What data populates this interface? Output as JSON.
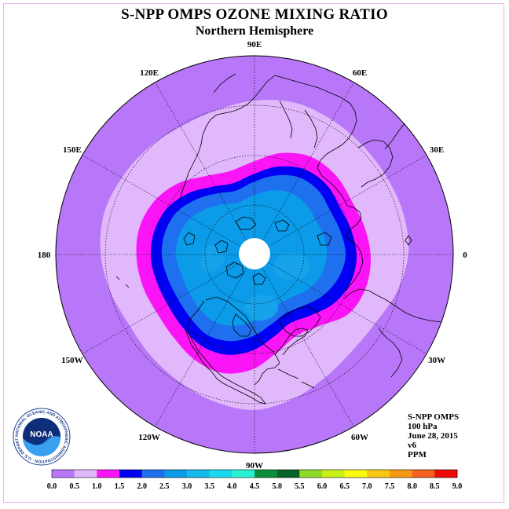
{
  "title": "S-NPP OMPS OZONE MIXING RATIO",
  "subtitle": "Northern Hemisphere",
  "longitude_labels": [
    "90E",
    "60E",
    "30E",
    "0",
    "30W",
    "60W",
    "90W",
    "120W",
    "150W",
    "180",
    "150E",
    "120E"
  ],
  "info": {
    "instrument": "S-NPP OMPS",
    "level": "100 hPa",
    "date": "June 28, 2015",
    "version": "v6",
    "units": "PPM"
  },
  "logo": {
    "name": "NOAA",
    "ring_text": "NATIONAL OCEANIC AND ATMOSPHERIC ADMINISTRATION · U.S. DEPARTMENT OF COMMERCE"
  },
  "colorbar": {
    "ticks": [
      "0.0",
      "0.5",
      "1.0",
      "1.5",
      "2.0",
      "2.5",
      "3.0",
      "3.5",
      "4.0",
      "4.5",
      "5.0",
      "5.5",
      "6.0",
      "6.5",
      "7.0",
      "7.5",
      "8.0",
      "8.5",
      "9.0"
    ],
    "colors": [
      "#b877f8",
      "#e0b8fb",
      "#fb15f6",
      "#0000f2",
      "#1e70ee",
      "#0b9be8",
      "#16b9ec",
      "#1ad8ef",
      "#28f2d2",
      "#0b8e3a",
      "#05632a",
      "#8fd92a",
      "#c9ef17",
      "#fbfb0a",
      "#f8c613",
      "#f59a10",
      "#f4601d",
      "#f00a0a",
      "#8c5a40"
    ]
  },
  "map": {
    "field_levels_ppm": [
      0.25,
      0.75,
      1.25,
      1.75,
      2.25,
      2.75
    ],
    "level_colors": [
      "#b877f8",
      "#e0b8fb",
      "#fb15f6",
      "#0000f2",
      "#1e70ee",
      "#0b9be8"
    ],
    "pole_no_data": true
  }
}
